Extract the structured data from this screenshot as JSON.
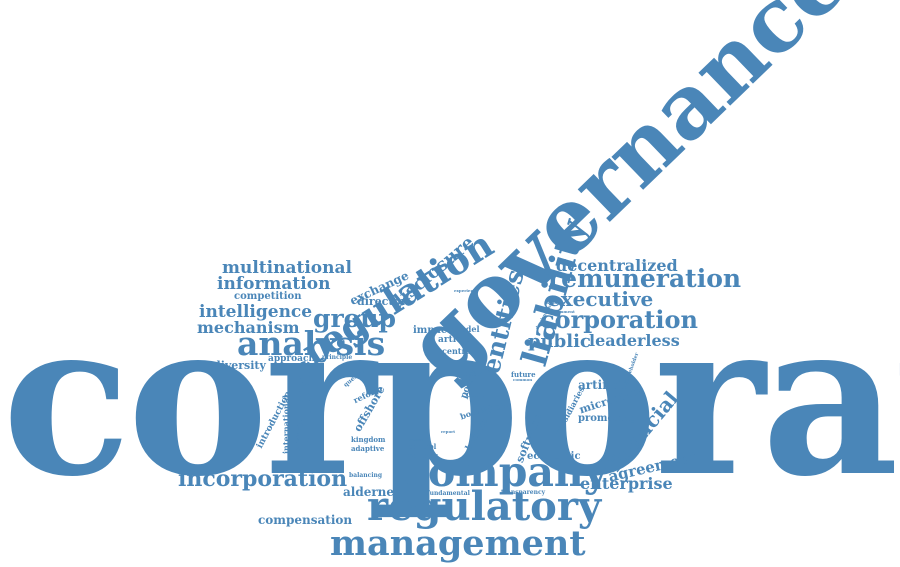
{
  "colors": {
    "word": "#4a86b8",
    "background": "#ffffff"
  },
  "words": [
    {
      "id": "corporate",
      "text": "corporate"
    },
    {
      "id": "governance",
      "text": "governance"
    },
    {
      "id": "company",
      "text": "company"
    },
    {
      "id": "regulatory",
      "text": "regulatory"
    },
    {
      "id": "management",
      "text": "management"
    },
    {
      "id": "regulation",
      "text": "regulation"
    },
    {
      "id": "analysis",
      "text": "analysis"
    },
    {
      "id": "liability",
      "text": "liability"
    },
    {
      "id": "entities",
      "text": "entities"
    },
    {
      "id": "remuneration",
      "text": "remuneration"
    },
    {
      "id": "corporation",
      "text": "corporation"
    },
    {
      "id": "executive",
      "text": "executive"
    },
    {
      "id": "decentralized",
      "text": "decentralized"
    },
    {
      "id": "group",
      "text": "group"
    },
    {
      "id": "purpose",
      "text": "purpose"
    },
    {
      "id": "incorporation",
      "text": "incorporation"
    },
    {
      "id": "multinational",
      "text": "multinational"
    },
    {
      "id": "information",
      "text": "information"
    },
    {
      "id": "intelligence",
      "text": "intelligence"
    },
    {
      "id": "mechanism",
      "text": "mechanism"
    },
    {
      "id": "disclosure",
      "text": "disclosure"
    },
    {
      "id": "public",
      "text": "public"
    },
    {
      "id": "leaderless",
      "text": "leaderless"
    },
    {
      "id": "financial",
      "text": "financial"
    },
    {
      "id": "enterprise",
      "text": "enterprise"
    },
    {
      "id": "agreement",
      "text": "agreement"
    },
    {
      "id": "compensation",
      "text": "compensation"
    },
    {
      "id": "alderney",
      "text": "alderney"
    },
    {
      "id": "software",
      "text": "software"
    },
    {
      "id": "artificial",
      "text": "artificial"
    },
    {
      "id": "microstate",
      "text": "microstate"
    },
    {
      "id": "promoting",
      "text": "promoting"
    },
    {
      "id": "economic",
      "text": "economic"
    },
    {
      "id": "competition",
      "text": "competition"
    },
    {
      "id": "exchange",
      "text": "exchange"
    },
    {
      "id": "director",
      "text": "director"
    },
    {
      "id": "diversity",
      "text": "diversity"
    },
    {
      "id": "approach",
      "text": "approach"
    },
    {
      "id": "principle",
      "text": "principle"
    },
    {
      "id": "impact",
      "text": "impact"
    },
    {
      "id": "article",
      "text": "article"
    },
    {
      "id": "model",
      "text": "model"
    },
    {
      "id": "centre",
      "text": "centre"
    },
    {
      "id": "officer",
      "text": "officer"
    },
    {
      "id": "benefit",
      "text": "benefit"
    },
    {
      "id": "offshore",
      "text": "offshore"
    },
    {
      "id": "reform",
      "text": "reform"
    },
    {
      "id": "question",
      "text": "question"
    },
    {
      "id": "introduction",
      "text": "introduction"
    },
    {
      "id": "international",
      "text": "international"
    },
    {
      "id": "kingdom",
      "text": "kingdom"
    },
    {
      "id": "adaptive",
      "text": "adaptive"
    },
    {
      "id": "control",
      "text": "control"
    },
    {
      "id": "policies",
      "text": "policies"
    },
    {
      "id": "balancing",
      "text": "balancing"
    },
    {
      "id": "fundamental",
      "text": "fundamental"
    },
    {
      "id": "transparency",
      "text": "transparency"
    },
    {
      "id": "future",
      "text": "future"
    },
    {
      "id": "tort",
      "text": "tort"
    },
    {
      "id": "cost",
      "text": "cost"
    },
    {
      "id": "board",
      "text": "board"
    },
    {
      "id": "policy",
      "text": "policy"
    },
    {
      "id": "subsidiaries",
      "text": "subsidiaries"
    },
    {
      "id": "shareholder",
      "text": "shareholder"
    },
    {
      "id": "government",
      "text": "government"
    },
    {
      "id": "japanese",
      "text": "japanese"
    },
    {
      "id": "experience",
      "text": "experience"
    },
    {
      "id": "common",
      "text": "common"
    },
    {
      "id": "present",
      "text": "present"
    },
    {
      "id": "report",
      "text": "report"
    },
    {
      "id": "jurisdiction",
      "text": "jurisdiction"
    },
    {
      "id": "development",
      "text": "development"
    }
  ]
}
